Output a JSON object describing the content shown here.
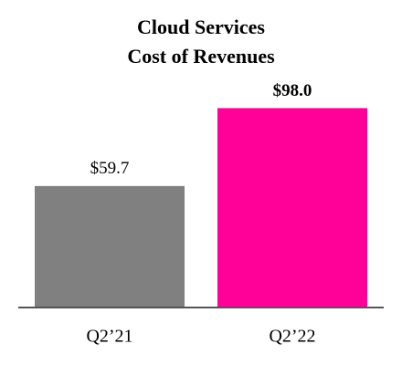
{
  "chart_data": {
    "type": "bar",
    "title": [
      "Cloud Services",
      "Cost of Revenues"
    ],
    "categories": [
      "Q2’21",
      "Q2’22"
    ],
    "values": [
      59.7,
      98.0
    ],
    "value_labels": [
      "$59.7",
      "$98.0"
    ],
    "colors": [
      "#808080",
      "#ff0099"
    ],
    "bold_value_labels": [
      false,
      true
    ]
  }
}
